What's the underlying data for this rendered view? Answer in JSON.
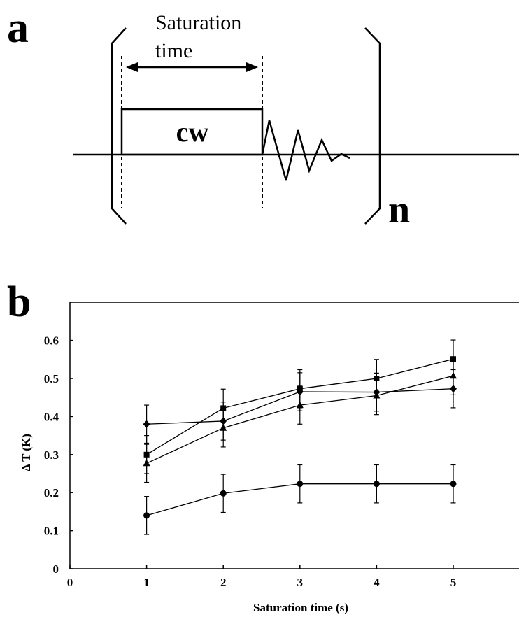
{
  "panel_a": {
    "letter": "a",
    "saturation_label_line1": "Saturation",
    "saturation_label_line2": "time",
    "block_label": "cw",
    "repeat_label": "n"
  },
  "panel_b": {
    "letter": "b"
  },
  "chart_data": {
    "type": "line",
    "title": "",
    "xlabel": "Saturation time (s)",
    "ylabel": "Δ T (K)",
    "xlim": [
      0,
      6
    ],
    "ylim": [
      0,
      0.7
    ],
    "xticks": [
      0,
      1,
      2,
      3,
      4,
      5
    ],
    "xtick_labels": [
      "0",
      "1",
      "2",
      "3",
      "4",
      "5"
    ],
    "yticks": [
      0,
      0.1,
      0.2,
      0.3,
      0.4,
      0.5,
      0.6
    ],
    "ytick_labels": [
      "0",
      "0.1",
      "0.2",
      "0.3",
      "0.4",
      "0.5",
      "0.6"
    ],
    "grid": false,
    "legend": "none",
    "series": [
      {
        "marker": "diamond",
        "x": [
          1,
          2,
          3,
          4,
          5
        ],
        "y": [
          0.38,
          0.388,
          0.465,
          0.464,
          0.473
        ],
        "err": [
          0.05,
          0.05,
          0.05,
          0.05,
          0.05
        ]
      },
      {
        "marker": "square",
        "x": [
          1,
          2,
          3,
          4,
          5
        ],
        "y": [
          0.3,
          0.422,
          0.473,
          0.5,
          0.551
        ],
        "err": [
          0.05,
          0.05,
          0.05,
          0.05,
          0.05
        ]
      },
      {
        "marker": "triangle",
        "x": [
          1,
          2,
          3,
          4,
          5
        ],
        "y": [
          0.277,
          0.37,
          0.43,
          0.455,
          0.507
        ],
        "err": [
          0.05,
          0.05,
          0.05,
          0.05,
          0.05
        ]
      },
      {
        "marker": "circle",
        "x": [
          1,
          2,
          3,
          4,
          5
        ],
        "y": [
          0.14,
          0.198,
          0.223,
          0.223,
          0.223
        ],
        "err": [
          0.05,
          0.05,
          0.05,
          0.05,
          0.05
        ]
      }
    ]
  }
}
